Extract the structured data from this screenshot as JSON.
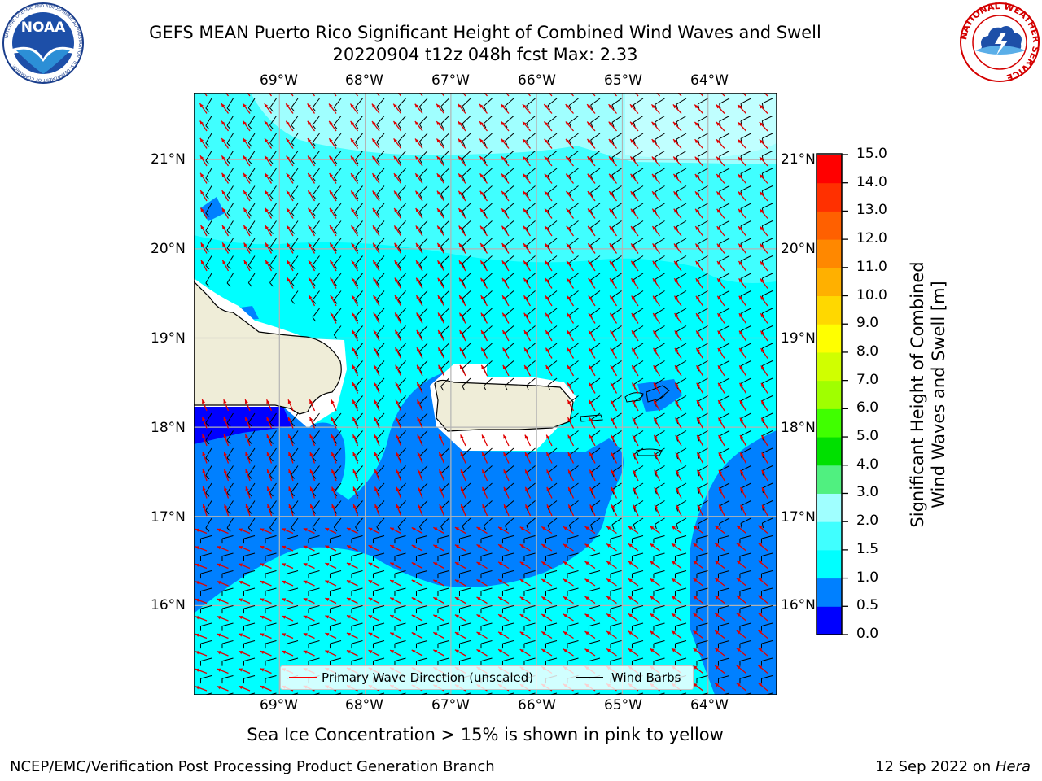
{
  "title": {
    "line1": "GEFS MEAN Puerto Rico Significant Height of Combined Wind Waves and Swell",
    "line2": "20220904 t12z 048h fcst   Max: 2.33"
  },
  "logos": {
    "left": {
      "text": "NOAA",
      "ring_text": "NATIONAL OCEANIC AND ATMOSPHERIC ADMINISTRATION · U.S. DEPARTMENT OF COMMERCE"
    },
    "right": {
      "ring_text": "NATIONAL WEATHER SERVICE"
    }
  },
  "map": {
    "lon_labels": [
      "69°W",
      "68°W",
      "67°W",
      "66°W",
      "65°W",
      "64°W"
    ],
    "lat_labels": [
      "21°N",
      "20°N",
      "19°N",
      "18°N",
      "17°N",
      "16°N"
    ],
    "lon_range": [
      -70.0,
      -63.2
    ],
    "lat_range": [
      15.0,
      21.75
    ]
  },
  "legend": {
    "primary_wave_label": "Primary Wave Direction (unscaled)",
    "wind_barbs_label": "Wind Barbs",
    "primary_wave_color": "#ff0000",
    "wind_barbs_color": "#000000"
  },
  "colorbar": {
    "label_line1": "Significant Height of Combined",
    "label_line2": "Wind Waves and Swell [m]",
    "ticks": [
      "0.0",
      "0.5",
      "1.0",
      "1.5",
      "2.0",
      "3.0",
      "4.0",
      "5.0",
      "6.0",
      "7.0",
      "8.0",
      "9.0",
      "10.0",
      "11.0",
      "12.0",
      "13.0",
      "14.0",
      "15.0"
    ],
    "colors": [
      "#0000ff",
      "#0080ff",
      "#00ffff",
      "#40ffff",
      "#a0ffff",
      "#50f080",
      "#00e000",
      "#40ff00",
      "#a0ff00",
      "#d0ff00",
      "#ffff00",
      "#ffd800",
      "#ffb000",
      "#ff8800",
      "#ff6000",
      "#ff3000",
      "#ff0000"
    ]
  },
  "footer": {
    "sea_ice_note": "Sea Ice Concentration > 15% is shown in pink to yellow",
    "left": "NCEP/EMC/Verification Post Processing Product Generation Branch",
    "date": "12 Sep 2022 on ",
    "host": "Hera"
  }
}
